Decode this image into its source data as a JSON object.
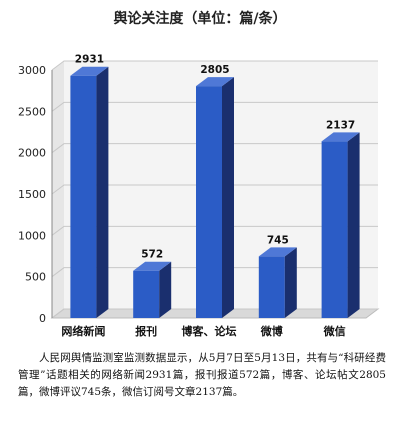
{
  "chart_data": {
    "type": "bar",
    "title": "舆论关注度（单位：篇/条）",
    "categories": [
      "网络新闻",
      "报刊",
      "博客、论坛",
      "微博",
      "微信"
    ],
    "values": [
      2931,
      572,
      2805,
      745,
      2137
    ],
    "data_labels": [
      "2931",
      "572",
      "2805",
      "745",
      "2137"
    ],
    "yticks": [
      "0",
      "500",
      "1000",
      "1500",
      "2000",
      "2500",
      "3000"
    ],
    "ylim": [
      0,
      3000
    ],
    "xlabel": "",
    "ylabel": "",
    "grid": true,
    "legend": "none",
    "colors": {
      "bar_front": "#2b5cc6",
      "bar_side": "#1a2f6e",
      "bar_top": "#4f78d6",
      "grid": "#c8c8c8",
      "wall": "#f4f4f4",
      "floor": "#bcbcbc"
    }
  },
  "caption": "人民网舆情监测室监测数据显示，从5月7日至5月13日，共有与“科研经费管理”话题相关的网络新闻2931篇，报刊报道572篇，博客、论坛帖文2805篇，微博评议745条，微信订阅号文章2137篇。"
}
